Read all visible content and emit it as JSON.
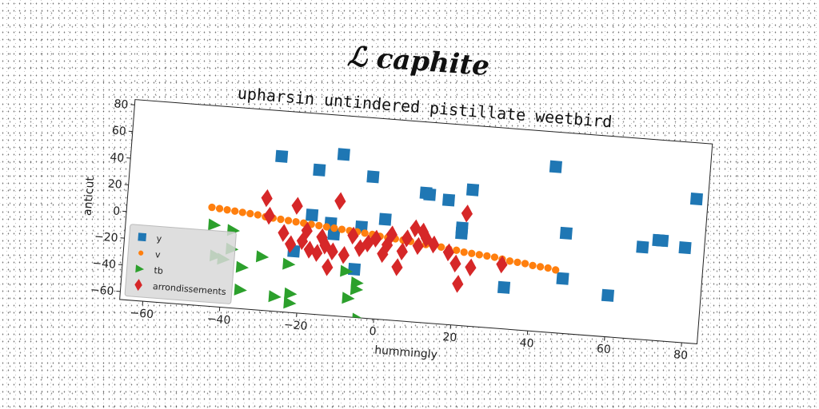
{
  "chart_data": {
    "type": "scatter",
    "title": "ℒ caphite",
    "subtitle": "upharsin untindered pistillate weetbird",
    "xlabel": "hummingly",
    "ylabel": "anticut",
    "xlim": [
      -66,
      84
    ],
    "ylim": [
      -66,
      84
    ],
    "xticks": [
      -60,
      -40,
      -20,
      0,
      20,
      40,
      60,
      80
    ],
    "yticks": [
      -60,
      -40,
      -20,
      0,
      20,
      40,
      60,
      80
    ],
    "grid": false,
    "legend_position": "lower-left",
    "series": [
      {
        "name": "y",
        "marker": "square",
        "color": "#1f77b4",
        "points": [
          [
            -27,
            50
          ],
          [
            -17,
            42
          ],
          [
            -11,
            55
          ],
          [
            -3,
            40
          ],
          [
            1,
            9
          ],
          [
            -18,
            8
          ],
          [
            -13,
            3
          ],
          [
            -5,
            2
          ],
          [
            -22,
            -20
          ],
          [
            -12,
            -5
          ],
          [
            -6,
            -30
          ],
          [
            11,
            31
          ],
          [
            12,
            30
          ],
          [
            17,
            27
          ],
          [
            21,
            7
          ],
          [
            21,
            3
          ],
          [
            23,
            36
          ],
          [
            33,
            -35
          ],
          [
            44,
            58
          ],
          [
            48,
            9
          ],
          [
            48,
            -25
          ],
          [
            60,
            -35
          ],
          [
            68,
            3
          ],
          [
            72,
            9
          ],
          [
            73,
            9
          ],
          [
            79,
            5
          ],
          [
            81,
            42
          ]
        ]
      },
      {
        "name": "v",
        "marker": "circle",
        "color": "#ff7f0e",
        "points": [
          [
            -44,
            8
          ],
          [
            -42,
            7.5
          ],
          [
            -40,
            7
          ],
          [
            -38,
            6.5
          ],
          [
            -36,
            6
          ],
          [
            -34,
            5.5
          ],
          [
            -32,
            5
          ],
          [
            -30,
            4
          ],
          [
            -28,
            3.5
          ],
          [
            -26,
            3
          ],
          [
            -24,
            2.5
          ],
          [
            -22,
            2
          ],
          [
            -20,
            1.5
          ],
          [
            -18,
            1
          ],
          [
            -16,
            0.5
          ],
          [
            -14,
            0
          ],
          [
            -12,
            -0.5
          ],
          [
            -10,
            -1
          ],
          [
            -8,
            -1.5
          ],
          [
            -6,
            -2
          ],
          [
            -4,
            -2.5
          ],
          [
            -2,
            -3
          ],
          [
            0,
            -4
          ],
          [
            2,
            -4.5
          ],
          [
            4,
            -5
          ],
          [
            6,
            -5.5
          ],
          [
            8,
            -6
          ],
          [
            10,
            -7
          ],
          [
            12,
            -7.5
          ],
          [
            14,
            -8
          ],
          [
            16,
            -8.5
          ],
          [
            18,
            -9.5
          ],
          [
            20,
            -10
          ],
          [
            22,
            -11
          ],
          [
            24,
            -11.5
          ],
          [
            26,
            -12
          ],
          [
            28,
            -12.5
          ],
          [
            30,
            -13
          ],
          [
            32,
            -14
          ],
          [
            34,
            -15
          ],
          [
            36,
            -15.5
          ],
          [
            38,
            -16
          ],
          [
            40,
            -17
          ],
          [
            42,
            -17.5
          ],
          [
            44,
            -18
          ],
          [
            46,
            -19
          ]
        ]
      },
      {
        "name": "tb",
        "marker": "triangle-right",
        "color": "#2ca02c",
        "points": [
          [
            -43,
            -5
          ],
          [
            -38,
            -8
          ],
          [
            -38,
            -22
          ],
          [
            -35,
            -35
          ],
          [
            -30,
            -26
          ],
          [
            -23,
            -30
          ],
          [
            -22,
            -52
          ],
          [
            -22,
            -59
          ],
          [
            -26,
            -55
          ],
          [
            -35,
            -52
          ],
          [
            -7,
            -52
          ],
          [
            -5,
            -40
          ],
          [
            -5,
            -45
          ],
          [
            -4,
            -67
          ],
          [
            -8,
            -32
          ],
          [
            -42,
            -28
          ],
          [
            -40,
            -30
          ]
        ]
      },
      {
        "name": "arrondissements",
        "marker": "diamond",
        "color": "#d62728",
        "points": [
          [
            -30,
            18
          ],
          [
            -29,
            5
          ],
          [
            -22,
            14
          ],
          [
            -19,
            -4
          ],
          [
            -23,
            -15
          ],
          [
            -20,
            -12
          ],
          [
            -16,
            -20
          ],
          [
            -15,
            -8
          ],
          [
            -13,
            -30
          ],
          [
            -12,
            -18
          ],
          [
            -11,
            20
          ],
          [
            -9,
            -20
          ],
          [
            -7,
            -5
          ],
          [
            -5,
            -14
          ],
          [
            -3,
            -10
          ],
          [
            -1,
            -6
          ],
          [
            1,
            -17
          ],
          [
            3,
            -2
          ],
          [
            5,
            -26
          ],
          [
            7,
            -4
          ],
          [
            9,
            4
          ],
          [
            10,
            -9
          ],
          [
            12,
            -3
          ],
          [
            14,
            -7
          ],
          [
            18,
            -12
          ],
          [
            20,
            -20
          ],
          [
            21,
            -35
          ],
          [
            22,
            18
          ],
          [
            24,
            -22
          ],
          [
            32,
            -18
          ],
          [
            -25,
            -7
          ],
          [
            -18,
            -18
          ],
          [
            2,
            -10
          ],
          [
            6,
            -14
          ],
          [
            11,
            2
          ],
          [
            -14,
            -14
          ]
        ]
      }
    ]
  }
}
